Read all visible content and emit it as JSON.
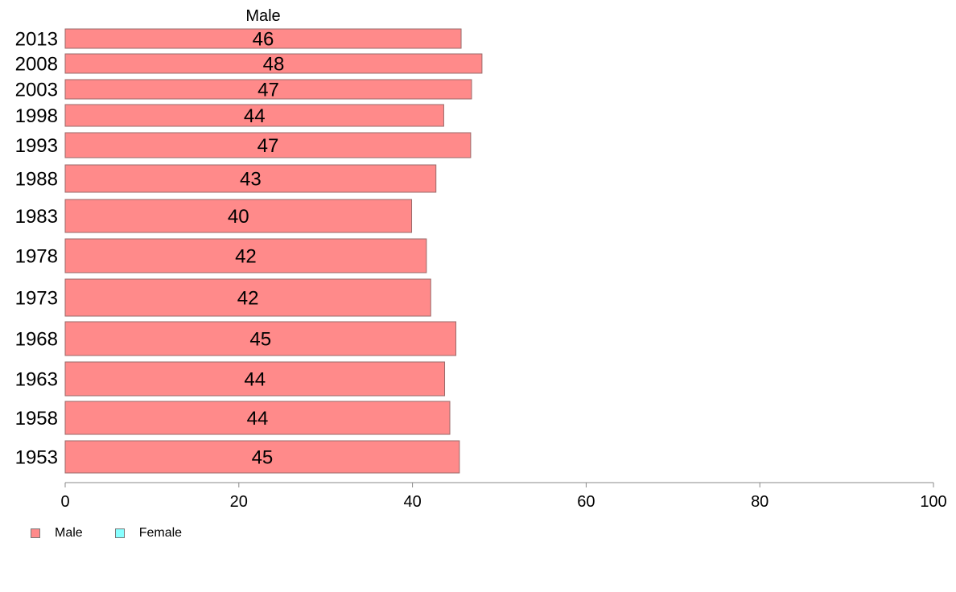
{
  "chart_data": {
    "type": "bar",
    "orientation": "horizontal",
    "title": "Male",
    "categories": [
      "2013",
      "2008",
      "2003",
      "1998",
      "1993",
      "1988",
      "1983",
      "1978",
      "1973",
      "1968",
      "1963",
      "1958",
      "1953"
    ],
    "series": [
      {
        "name": "Male",
        "values": [
          45.6,
          48.0,
          46.8,
          43.6,
          46.7,
          42.7,
          39.9,
          41.6,
          42.1,
          45.0,
          43.7,
          44.3,
          45.4
        ],
        "labels": [
          "46",
          "48",
          "47",
          "44",
          "47",
          "43",
          "40",
          "42",
          "42",
          "45",
          "44",
          "44",
          "45"
        ],
        "color": "#ff8a8a"
      }
    ],
    "xlim": [
      0,
      100
    ],
    "x_ticks": [
      "0",
      "20",
      "40",
      "60",
      "80",
      "100"
    ],
    "grid": false,
    "legend": {
      "placement": "bottom-left",
      "entries": [
        {
          "label": "Male",
          "color": "#ff8a8a"
        },
        {
          "label": "Female",
          "color": "#88ffff"
        }
      ]
    }
  }
}
